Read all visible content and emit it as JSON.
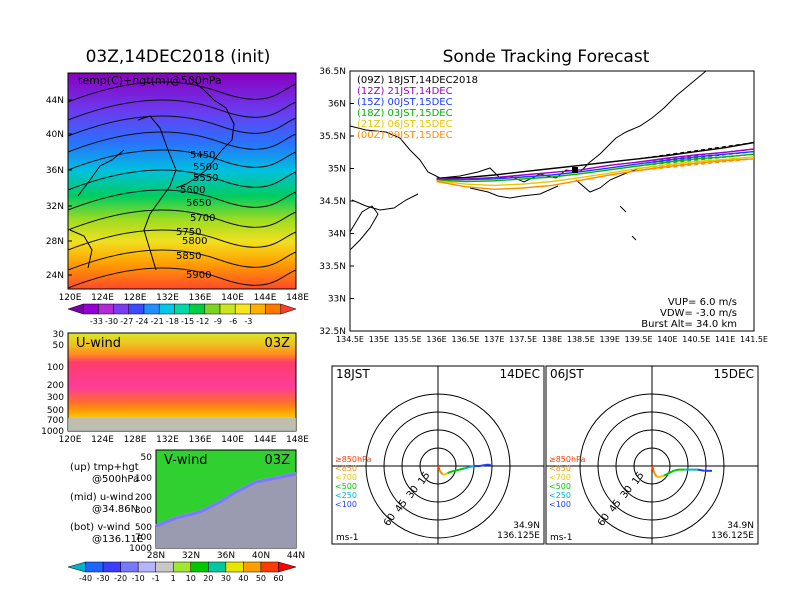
{
  "map_panel": {
    "title": "03Z,14DEC2018 (init)",
    "label": "temp(C)+hgt(m)@500hPa",
    "lat_ticks": [
      "44N",
      "40N",
      "36N",
      "32N",
      "28N",
      "24N"
    ],
    "lon_ticks": [
      "120E",
      "124E",
      "128E",
      "132E",
      "136E",
      "140E",
      "144E",
      "148E"
    ],
    "contour_labels": [
      "5450",
      "5500",
      "5550",
      "5600",
      "5650",
      "5700",
      "5750",
      "5800",
      "5850",
      "5900"
    ],
    "colorbar_labels": [
      "-33",
      "-30",
      "-27",
      "-24",
      "-21",
      "-18",
      "-15",
      "-12",
      "-9",
      "-6",
      "-3"
    ],
    "colorbar_colors": [
      "#7a00b0",
      "#9400d3",
      "#b22bd8",
      "#7b3df0",
      "#3a4bff",
      "#1e90ff",
      "#00c8e6",
      "#00d8a8",
      "#00cc44",
      "#7ed320",
      "#c8e61e",
      "#f5e61e",
      "#ffb000",
      "#ff7800",
      "#ff3c28"
    ]
  },
  "uwind_panel": {
    "label": "U-wind",
    "time": "03Z",
    "p_ticks": [
      "30",
      "50",
      "100",
      "200",
      "300",
      "500",
      "700",
      "1000"
    ],
    "lon_ticks": [
      "120E",
      "124E",
      "128E",
      "132E",
      "136E",
      "140E",
      "144E",
      "148E"
    ]
  },
  "vwind_panel": {
    "label": "V-wind",
    "time": "03Z",
    "p_ticks": [
      "50",
      "100",
      "200",
      "300",
      "500",
      "700",
      "1000"
    ],
    "lat_ticks": [
      "28N",
      "32N",
      "36N",
      "40N",
      "44N"
    ],
    "colorbar_labels": [
      "-40",
      "-30",
      "-20",
      "-10",
      "-1",
      "1",
      "10",
      "20",
      "30",
      "40",
      "50",
      "60"
    ],
    "colorbar_colors": [
      "#00b4c8",
      "#1e64ff",
      "#3c3cff",
      "#7878ff",
      "#b4b4ff",
      "#c8c8c8",
      "#a0e632",
      "#00c800",
      "#00c8a0",
      "#e6e600",
      "#ffa000",
      "#ff3c00",
      "#ff0000"
    ]
  },
  "legend_notes": [
    {
      "a": "(up) tmp+hgt",
      "b": "@500hPa"
    },
    {
      "a": "(mid) u-wind",
      "b": "@34.86N"
    },
    {
      "a": "(bot) v-wind",
      "b": "@136.11E"
    }
  ],
  "track_panel": {
    "title": "Sonde Tracking Forecast",
    "lat_ticks": [
      "36.5N",
      "36N",
      "35.5N",
      "35N",
      "34.5N",
      "34N",
      "33.5N",
      "33N",
      "32.5N"
    ],
    "lon_ticks": [
      "134.5E",
      "135E",
      "135.5E",
      "136E",
      "136.5E",
      "137E",
      "137.5E",
      "138E",
      "138.5E",
      "139E",
      "139.5E",
      "140E",
      "140.5E",
      "141E",
      "141.5E"
    ],
    "runs": [
      {
        "label": "(09Z)  18JST,14DEC2018",
        "color": "#000000"
      },
      {
        "label": "(12Z)  21JST,14DEC",
        "color": "#a000c8"
      },
      {
        "label": "(15Z)  00JST,15DEC",
        "color": "#1e3cff"
      },
      {
        "label": "(18Z)  03JST,15DEC",
        "color": "#00b400"
      },
      {
        "label": "(21Z)  06JST,15DEC",
        "color": "#e6c800"
      },
      {
        "label": "(00Z)  09JST,15DEC",
        "color": "#ff8c00"
      }
    ],
    "params": [
      "VUP=  6.0 m/s",
      "VDW= -3.0 m/s",
      "Burst Alt= 34.0 km"
    ]
  },
  "hodo_left": {
    "time": "18JST",
    "date": "14DEC",
    "ring_labels": [
      "15",
      "30",
      "45",
      "60"
    ],
    "levels": [
      {
        "label": "≥850hPa",
        "color": "#ff3c00"
      },
      {
        "label": "<850",
        "color": "#ff8c00"
      },
      {
        "label": "<700",
        "color": "#e6c800"
      },
      {
        "label": "<500",
        "color": "#00c800"
      },
      {
        "label": "<250",
        "color": "#00b4c8"
      },
      {
        "label": "<100",
        "color": "#1e3cff"
      }
    ],
    "unit": "ms-1",
    "lat": "34.9N",
    "lon": "136.125E"
  },
  "hodo_right": {
    "time": "06JST",
    "date": "15DEC",
    "ring_labels": [
      "15",
      "30",
      "45",
      "60"
    ],
    "unit": "ms-1",
    "lat": "34.9N",
    "lon": "136.125E"
  },
  "chart_data": [
    {
      "type": "heatmap",
      "title": "03Z,14DEC2018 (init)",
      "subtitle": "temp(C)+hgt(m)@500hPa",
      "x": [
        "120E",
        "124E",
        "128E",
        "132E",
        "136E",
        "140E",
        "144E",
        "148E"
      ],
      "y": [
        "24N",
        "28N",
        "32N",
        "36N",
        "40N",
        "44N"
      ],
      "contours_hgt_m": [
        5450,
        5500,
        5550,
        5600,
        5650,
        5700,
        5750,
        5800,
        5850,
        5900
      ],
      "temp_colorbar_C": [
        -33,
        -30,
        -27,
        -24,
        -21,
        -18,
        -15,
        -12,
        -9,
        -6,
        -3
      ]
    },
    {
      "type": "heatmap",
      "title": "U-wind",
      "xlabel": "",
      "ylabel": "",
      "x": [
        "120E",
        "124E",
        "128E",
        "132E",
        "136E",
        "140E",
        "144E",
        "148E"
      ],
      "y_hPa": [
        30,
        50,
        100,
        200,
        300,
        500,
        700,
        1000
      ]
    },
    {
      "type": "heatmap",
      "title": "V-wind",
      "x": [
        "28N",
        "32N",
        "36N",
        "40N",
        "44N"
      ],
      "y_hPa": [
        50,
        100,
        200,
        300,
        500,
        700,
        1000
      ],
      "colorbar": [
        -40,
        -30,
        -20,
        -10,
        -1,
        1,
        10,
        20,
        30,
        40,
        50,
        60
      ]
    },
    {
      "type": "line",
      "title": "Sonde Tracking Forecast",
      "xlim": [
        134.5,
        141.5
      ],
      "ylim": [
        32.5,
        36.5
      ],
      "launch": [
        136.0,
        34.85
      ],
      "series": [
        {
          "name": "(09Z)  18JST,14DEC2018",
          "x": [
            136.0,
            136.5,
            137.0,
            137.5,
            138.0,
            138.5,
            139.0,
            139.5,
            140.0,
            140.5,
            141.0,
            141.5
          ],
          "y": [
            34.85,
            34.86,
            34.9,
            34.95,
            35.0,
            35.05,
            35.1,
            35.15,
            35.2,
            35.26,
            35.32,
            35.4
          ]
        },
        {
          "name": "(12Z)  21JST,14DEC",
          "x": [
            136.0,
            136.5,
            137.0,
            137.5,
            138.0,
            138.5,
            139.0,
            139.5,
            140.0,
            140.5,
            141.0,
            141.5
          ],
          "y": [
            34.84,
            34.84,
            34.86,
            34.9,
            34.94,
            34.98,
            35.05,
            35.1,
            35.16,
            35.21,
            35.25,
            35.3
          ]
        },
        {
          "name": "(15Z)  00JST,15DEC",
          "x": [
            136.0,
            136.5,
            137.0,
            137.5,
            138.0,
            138.5,
            139.0,
            139.5,
            140.0,
            140.5,
            141.0,
            141.5
          ],
          "y": [
            34.83,
            34.83,
            34.84,
            34.87,
            34.9,
            34.95,
            35.01,
            35.07,
            35.13,
            35.18,
            35.22,
            35.26
          ]
        },
        {
          "name": "(18Z)  03JST,15DEC",
          "x": [
            136.0,
            136.5,
            137.0,
            137.5,
            138.0,
            138.5,
            139.0,
            139.5,
            140.0,
            140.5,
            141.0,
            141.5
          ],
          "y": [
            34.82,
            34.8,
            34.81,
            34.84,
            34.87,
            34.92,
            34.98,
            35.04,
            35.1,
            35.15,
            35.18,
            35.22
          ]
        },
        {
          "name": "(21Z)  06JST,15DEC",
          "x": [
            136.0,
            136.5,
            137.0,
            137.5,
            138.0,
            138.5,
            139.0,
            139.5,
            140.0,
            140.5,
            141.0,
            141.5
          ],
          "y": [
            34.81,
            34.76,
            34.74,
            34.76,
            34.8,
            34.86,
            34.93,
            35.0,
            35.06,
            35.11,
            35.14,
            35.18
          ]
        },
        {
          "name": "(00Z)  09JST,15DEC",
          "x": [
            136.0,
            136.5,
            137.0,
            137.5,
            138.0,
            138.5,
            139.0,
            139.5,
            140.0,
            140.5,
            141.0,
            141.5
          ],
          "y": [
            34.8,
            34.72,
            34.68,
            34.7,
            34.74,
            34.82,
            34.9,
            34.97,
            35.03,
            35.08,
            35.12,
            35.15
          ]
        }
      ],
      "params": {
        "VUP_m_s": 6.0,
        "VDW_m_s": -3.0,
        "burst_alt_km": 34.0
      }
    },
    {
      "type": "line",
      "title": "Hodograph 18JST 14DEC",
      "rings_ms": [
        15,
        30,
        45,
        60
      ],
      "u": [
        0,
        0.5,
        1,
        2,
        4,
        6,
        8,
        10,
        14,
        18,
        22,
        26,
        30,
        35,
        40,
        44
      ],
      "v": [
        0,
        -1,
        -3,
        -5,
        -7,
        -7,
        -6,
        -5,
        -4,
        -3,
        -2,
        -1,
        0,
        0,
        1,
        1
      ]
    },
    {
      "type": "line",
      "title": "Hodograph 06JST 15DEC",
      "rings_ms": [
        15,
        30,
        45,
        60
      ],
      "u": [
        0,
        1,
        2,
        4,
        7,
        10,
        14,
        18,
        22,
        27,
        32,
        38,
        44,
        50
      ],
      "v": [
        0,
        -3,
        -6,
        -9,
        -9,
        -8,
        -6,
        -4,
        -3,
        -3,
        -3,
        -3,
        -4,
        -4
      ]
    }
  ]
}
